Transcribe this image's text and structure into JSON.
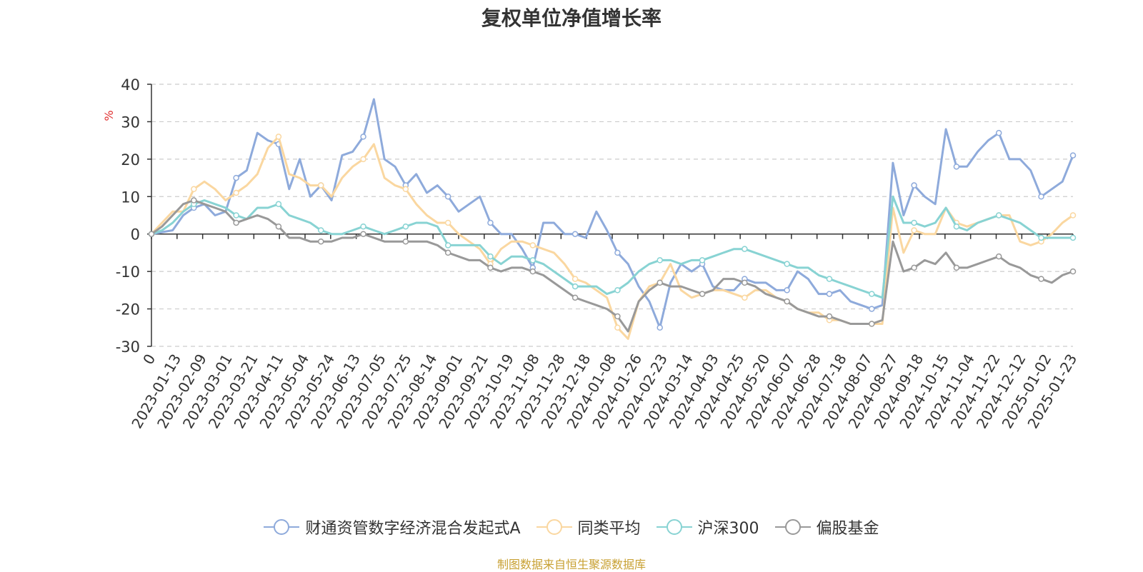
{
  "chart_data": {
    "type": "line",
    "title": "复权单位净值增长率",
    "ylabel": "%",
    "ylim": [
      -30,
      40
    ],
    "yticks": [
      40,
      30,
      20,
      10,
      0,
      -10,
      -20,
      -30
    ],
    "x_tick_labels": [
      "0",
      "2023-01-13",
      "2023-02-09",
      "2023-03-01",
      "2023-03-21",
      "2023-04-11",
      "2023-05-04",
      "2023-05-24",
      "2023-06-13",
      "2023-07-05",
      "2023-07-25",
      "2023-08-14",
      "2023-09-01",
      "2023-09-21",
      "2023-10-19",
      "2023-11-08",
      "2023-11-28",
      "2023-12-18",
      "2024-01-08",
      "2024-01-26",
      "2024-02-23",
      "2024-03-14",
      "2024-04-03",
      "2024-04-25",
      "2024-05-20",
      "2024-06-07",
      "2024-06-28",
      "2024-07-18",
      "2024-08-07",
      "2024-08-27",
      "2024-09-18",
      "2024-10-15",
      "2024-11-04",
      "2024-11-22",
      "2024-12-12",
      "2025-01-02",
      "2025-01-23"
    ],
    "grid": true,
    "legend_position": "bottom",
    "series": [
      {
        "name": "财通资管数字经济混合发起式A",
        "color": "#8eaadb",
        "values": [
          0,
          0.5,
          1,
          5,
          7,
          8,
          5,
          6,
          15,
          17,
          27,
          25,
          24,
          12,
          20,
          10,
          13,
          9,
          21,
          22,
          26,
          36,
          20,
          18,
          13,
          16,
          11,
          13,
          10,
          6,
          8,
          10,
          3,
          0,
          0,
          -4,
          -9,
          3,
          3,
          0,
          0,
          -1,
          6,
          1,
          -5,
          -8,
          -14,
          -18,
          -25,
          -13,
          -8,
          -10,
          -8,
          -14,
          -15,
          -15,
          -12,
          -13,
          -13,
          -15,
          -15,
          -10,
          -12,
          -16,
          -16,
          -15,
          -18,
          -19,
          -20,
          -19,
          19,
          5,
          13,
          10,
          8,
          28,
          18,
          18,
          22,
          25,
          27,
          20,
          20,
          17,
          10,
          12,
          14,
          21
        ]
      },
      {
        "name": "同类平均",
        "color": "#fad7a0",
        "values": [
          0,
          3,
          6,
          6,
          12,
          14,
          12,
          9,
          11,
          13,
          16,
          23,
          26,
          16,
          15,
          13,
          13,
          10,
          15,
          18,
          20,
          24,
          15,
          13,
          12,
          8,
          5,
          3,
          3,
          0,
          -2,
          -4,
          -8,
          -4,
          -2,
          -2,
          -3,
          -4,
          -5,
          -8,
          -12,
          -13,
          -15,
          -17,
          -25,
          -28,
          -18,
          -14,
          -13,
          -8,
          -15,
          -17,
          -16,
          -15,
          -15,
          -16,
          -17,
          -15,
          -15,
          -17,
          -18,
          -20,
          -21,
          -21,
          -23,
          -23,
          -24,
          -24,
          -24,
          -24,
          7,
          -5,
          1,
          0,
          0,
          7,
          3,
          2,
          3,
          4,
          5,
          5,
          -2,
          -3,
          -2,
          0,
          3,
          5
        ]
      },
      {
        "name": "沪深300",
        "color": "#88d3d3",
        "values": [
          0,
          1,
          3,
          6,
          8,
          9,
          8,
          7,
          5,
          4,
          7,
          7,
          8,
          5,
          4,
          3,
          1,
          0,
          0,
          1,
          2,
          1,
          0,
          1,
          2,
          3,
          3,
          2,
          -3,
          -3,
          -3,
          -3,
          -6,
          -8,
          -6,
          -6,
          -7,
          -8,
          -10,
          -12,
          -14,
          -14,
          -14,
          -16,
          -15,
          -13,
          -10,
          -8,
          -7,
          -7,
          -8,
          -7,
          -7,
          -6,
          -5,
          -4,
          -4,
          -5,
          -6,
          -7,
          -8,
          -9,
          -9,
          -11,
          -12,
          -13,
          -14,
          -15,
          -16,
          -17,
          10,
          3,
          3,
          2,
          3,
          7,
          2,
          1,
          3,
          4,
          5,
          4,
          3,
          1,
          -1,
          -1,
          -1,
          -1
        ]
      },
      {
        "name": "偏股基金",
        "color": "#999999",
        "values": [
          0,
          2,
          5,
          8,
          9,
          8,
          7,
          6,
          3,
          4,
          5,
          4,
          2,
          -1,
          -1,
          -2,
          -2,
          -2,
          -1,
          -1,
          0,
          -1,
          -2,
          -2,
          -2,
          -2,
          -2,
          -3,
          -5,
          -6,
          -7,
          -7,
          -9,
          -10,
          -9,
          -9,
          -10,
          -11,
          -13,
          -15,
          -17,
          -18,
          -19,
          -20,
          -22,
          -26,
          -18,
          -15,
          -13,
          -14,
          -14,
          -15,
          -16,
          -15,
          -12,
          -12,
          -13,
          -14,
          -16,
          -17,
          -18,
          -20,
          -21,
          -22,
          -22,
          -23,
          -24,
          -24,
          -24,
          -23,
          -2,
          -10,
          -9,
          -7,
          -8,
          -5,
          -9,
          -9,
          -8,
          -7,
          -6,
          -8,
          -9,
          -11,
          -12,
          -13,
          -11,
          -10
        ]
      }
    ]
  },
  "source_note": "制图数据来自恒生聚源数据库"
}
